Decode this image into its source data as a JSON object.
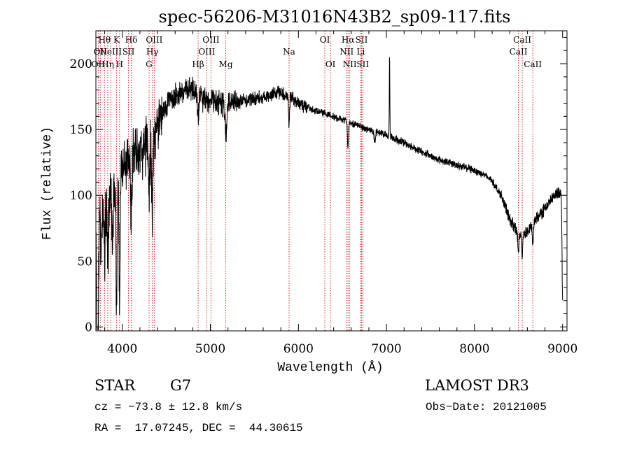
{
  "chart_data": {
    "type": "line",
    "title": "spec-56206-M31016N43B2_sp09-117.fits",
    "xlabel": "Wavelength (Å)",
    "ylabel": "Flux (relative)",
    "xlim": [
      3700,
      9050
    ],
    "ylim": [
      -3,
      225
    ],
    "xticks": [
      {
        "value": 4000,
        "label": "4000"
      },
      {
        "value": 5000,
        "label": "5000"
      },
      {
        "value": 6000,
        "label": "6000"
      },
      {
        "value": 7000,
        "label": "7000"
      },
      {
        "value": 8000,
        "label": "8000"
      },
      {
        "value": 9000,
        "label": "9000"
      }
    ],
    "yticks": [
      {
        "value": 0,
        "label": "0"
      },
      {
        "value": 50,
        "label": "50"
      },
      {
        "value": 100,
        "label": "100"
      },
      {
        "value": 150,
        "label": "150"
      },
      {
        "value": 200,
        "label": "200"
      }
    ],
    "lines": [
      {
        "wave": 3727,
        "label": "OII",
        "row": 2
      },
      {
        "wave": 3750,
        "label": "OII",
        "row": 1
      },
      {
        "wave": 3798,
        "label": "Hθ",
        "row": 0
      },
      {
        "wave": 3835,
        "label": "Hη",
        "row": 2
      },
      {
        "wave": 3869,
        "label": "NeIII",
        "row": 1
      },
      {
        "wave": 3934,
        "label": "K",
        "row": 0
      },
      {
        "wave": 3969,
        "label": "H",
        "row": 2
      },
      {
        "wave": 4070,
        "label": "SII",
        "row": 1
      },
      {
        "wave": 4102,
        "label": "Hδ",
        "row": 0
      },
      {
        "wave": 4304,
        "label": "G",
        "row": 2
      },
      {
        "wave": 4341,
        "label": "Hγ",
        "row": 1
      },
      {
        "wave": 4363,
        "label": "OIII",
        "row": 0
      },
      {
        "wave": 4861,
        "label": "Hβ",
        "row": 2
      },
      {
        "wave": 4959,
        "label": "OIII",
        "row": 1
      },
      {
        "wave": 5007,
        "label": "OIII",
        "row": 0
      },
      {
        "wave": 5175,
        "label": "Mg",
        "row": 2
      },
      {
        "wave": 5894,
        "label": "Na",
        "row": 1
      },
      {
        "wave": 6300,
        "label": "OI",
        "row": 0
      },
      {
        "wave": 6364,
        "label": "OI",
        "row": 2
      },
      {
        "wave": 6548,
        "label": "NII",
        "row": 1
      },
      {
        "wave": 6563,
        "label": "Hα",
        "row": 0
      },
      {
        "wave": 6583,
        "label": "NII",
        "row": 2
      },
      {
        "wave": 6708,
        "label": "Li",
        "row": 1
      },
      {
        "wave": 6717,
        "label": "SII",
        "row": 0
      },
      {
        "wave": 6731,
        "label": "SII",
        "row": 2
      },
      {
        "wave": 8498,
        "label": "CaII",
        "row": 1
      },
      {
        "wave": 8542,
        "label": "CaII",
        "row": 0
      },
      {
        "wave": 8662,
        "label": "CaII",
        "row": 2
      }
    ],
    "continuum": [
      [
        3700,
        72
      ],
      [
        3800,
        92
      ],
      [
        3900,
        105
      ],
      [
        4000,
        120
      ],
      [
        4100,
        130
      ],
      [
        4200,
        135
      ],
      [
        4300,
        140
      ],
      [
        4400,
        150
      ],
      [
        4500,
        170
      ],
      [
        4600,
        175
      ],
      [
        4700,
        180
      ],
      [
        4800,
        180
      ],
      [
        4900,
        173
      ],
      [
        5000,
        172
      ],
      [
        5100,
        170
      ],
      [
        5200,
        170
      ],
      [
        5400,
        172
      ],
      [
        5600,
        175
      ],
      [
        5800,
        178
      ],
      [
        5900,
        175
      ],
      [
        6000,
        170
      ],
      [
        6200,
        164
      ],
      [
        6400,
        160
      ],
      [
        6600,
        155
      ],
      [
        6800,
        150
      ],
      [
        7000,
        146
      ],
      [
        7200,
        140
      ],
      [
        7400,
        133
      ],
      [
        7600,
        127
      ],
      [
        7800,
        123
      ],
      [
        8000,
        119
      ],
      [
        8100,
        116
      ],
      [
        8200,
        111
      ],
      [
        8300,
        100
      ],
      [
        8400,
        82
      ],
      [
        8500,
        70
      ],
      [
        8600,
        72
      ],
      [
        8700,
        82
      ],
      [
        8800,
        90
      ],
      [
        8900,
        99
      ],
      [
        8950,
        103
      ],
      [
        9000,
        100
      ]
    ],
    "features": [
      {
        "wave": 3720,
        "depth": 120,
        "width": 8
      },
      {
        "wave": 3760,
        "depth": 30,
        "width": 6
      },
      {
        "wave": 3800,
        "depth": 40,
        "width": 6
      },
      {
        "wave": 3836,
        "depth": 45,
        "width": 6
      },
      {
        "wave": 3889,
        "depth": 50,
        "width": 6
      },
      {
        "wave": 3934,
        "depth": 85,
        "width": 7
      },
      {
        "wave": 3969,
        "depth": 95,
        "width": 7
      },
      {
        "wave": 4102,
        "depth": 45,
        "width": 8
      },
      {
        "wave": 4304,
        "depth": 35,
        "width": 8
      },
      {
        "wave": 4340,
        "depth": 65,
        "width": 7
      },
      {
        "wave": 4861,
        "depth": 15,
        "width": 8
      },
      {
        "wave": 5175,
        "depth": 22,
        "width": 10
      },
      {
        "wave": 5894,
        "depth": 20,
        "width": 6
      },
      {
        "wave": 6563,
        "depth": 20,
        "width": 6
      },
      {
        "wave": 6868,
        "depth": 8,
        "width": 8
      },
      {
        "wave": 8498,
        "depth": 14,
        "width": 6
      },
      {
        "wave": 8542,
        "depth": 18,
        "width": 6
      },
      {
        "wave": 8662,
        "depth": 16,
        "width": 6
      },
      {
        "wave": 9000,
        "depth": 80,
        "width": 6
      }
    ],
    "emission": [
      {
        "wave": 7035,
        "height": 60,
        "width": 3
      }
    ],
    "noise": [
      {
        "from": 3700,
        "to": 4450,
        "amp": 16
      },
      {
        "from": 4450,
        "to": 5300,
        "amp": 7
      },
      {
        "from": 5300,
        "to": 6100,
        "amp": 4
      },
      {
        "from": 6100,
        "to": 8300,
        "amp": 2.2
      },
      {
        "from": 8300,
        "to": 9050,
        "amp": 3.5
      }
    ]
  },
  "info": {
    "object_class": "STAR",
    "subclass": "G7",
    "survey": "LAMOST DR3",
    "redshift": "cz = −73.8 ± 12.8 km/s",
    "obs_date": "Obs−Date: 20121005",
    "coords": "RA =  17.07245, DEC =  44.30615"
  },
  "colors": {
    "spectrum": "#000000",
    "line_marker": "#d62728",
    "axes": "#000000",
    "background": "#ffffff"
  }
}
